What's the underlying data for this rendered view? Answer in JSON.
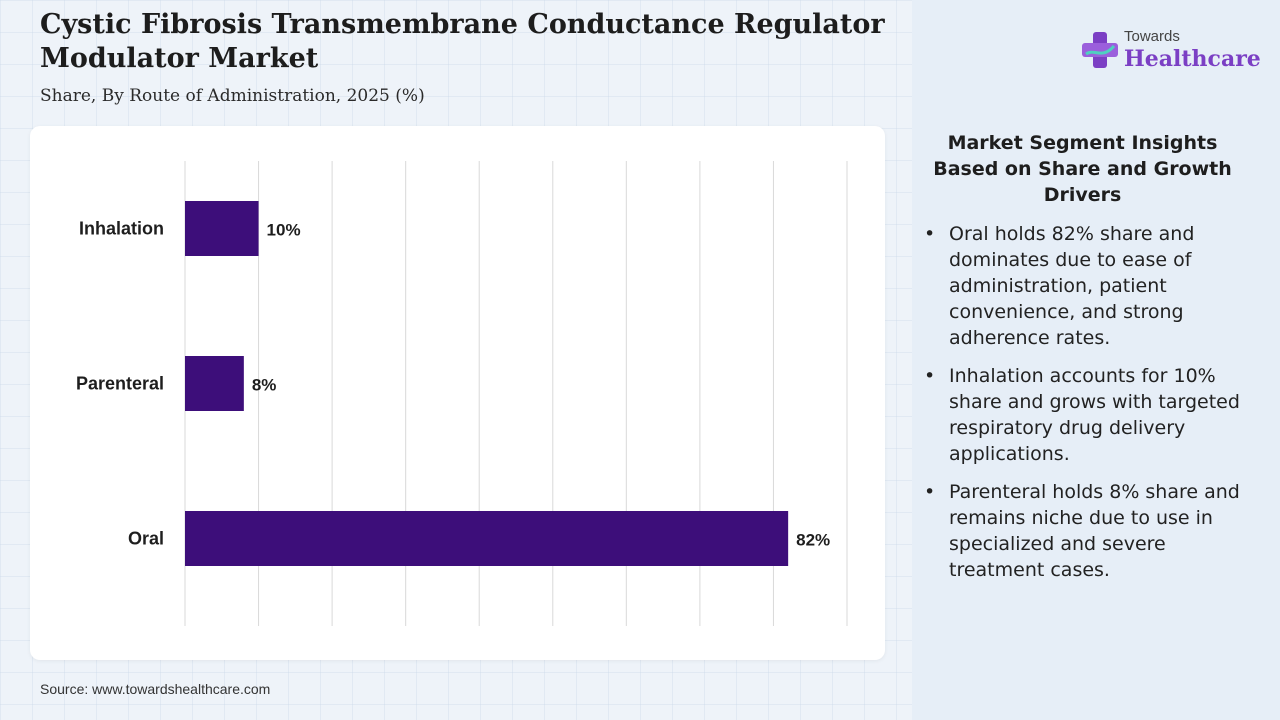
{
  "page": {
    "title": "Cystic Fibrosis Transmembrane Conductance Regulator Modulator Market",
    "subtitle": "Share, By Route of Administration, 2025 (%)",
    "source": "Source: www.towardshealthcare.com"
  },
  "logo": {
    "line1": "Towards",
    "line2": "Healthcare",
    "icon": "medical-cross-icon",
    "color": "#7b3fc4"
  },
  "insights": {
    "title": "Market Segment Insights Based on Share and Growth Drivers",
    "items": [
      "Oral holds 82% share and dominates due to ease of administration, patient convenience, and strong adherence rates.",
      "Inhalation accounts for 10% share and grows with targeted respiratory drug delivery applications.",
      "Parenteral holds 8% share and remains niche due to use in specialized and severe treatment cases."
    ]
  },
  "chart_data": {
    "type": "bar",
    "orientation": "horizontal",
    "categories": [
      "Inhalation",
      "Parenteral",
      "Oral"
    ],
    "values": [
      10,
      8,
      82
    ],
    "data_labels": [
      "10%",
      "8%",
      "82%"
    ],
    "xlim": [
      0,
      90
    ],
    "grid": true,
    "bar_color": "#3d0e7a",
    "title": "",
    "xlabel": "",
    "ylabel": ""
  }
}
